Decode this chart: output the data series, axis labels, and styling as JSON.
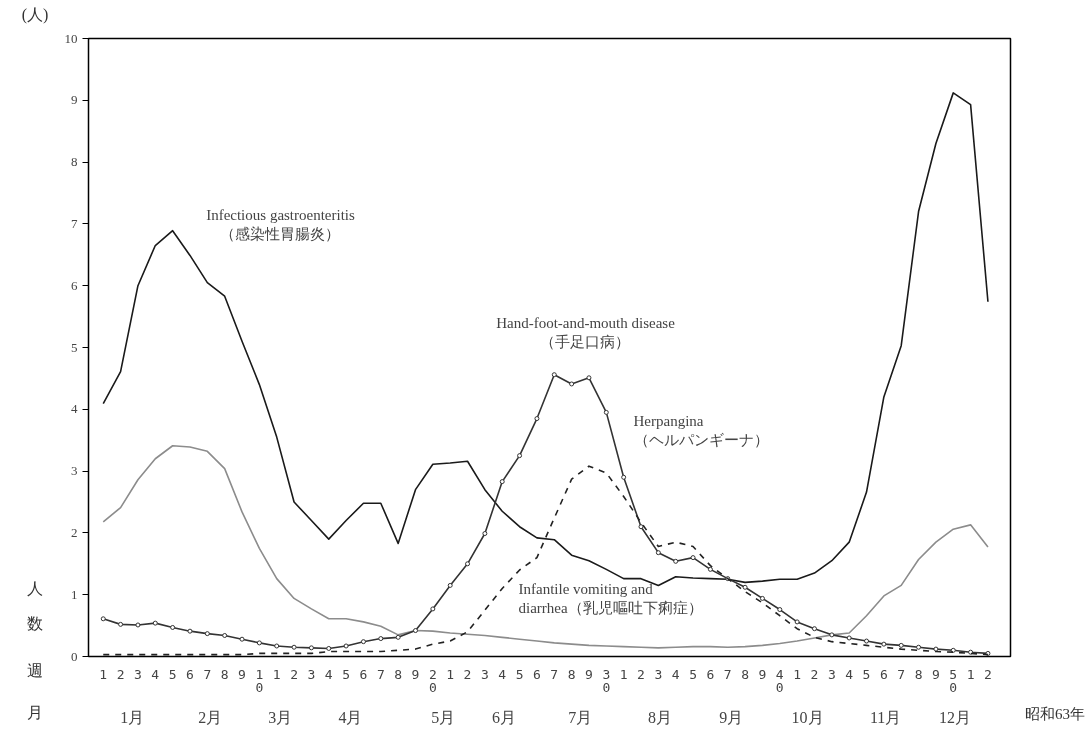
{
  "chart_data": {
    "type": "line",
    "categories": [
      "1",
      "2",
      "3",
      "4",
      "5",
      "6",
      "7",
      "8",
      "9",
      "1\n0",
      "1",
      "2",
      "3",
      "4",
      "5",
      "6",
      "7",
      "8",
      "9",
      "2\n0",
      "1",
      "2",
      "3",
      "4",
      "5",
      "6",
      "7",
      "8",
      "9",
      "3\n0",
      "1",
      "2",
      "3",
      "4",
      "5",
      "6",
      "7",
      "8",
      "9",
      "4\n0",
      "1",
      "2",
      "3",
      "4",
      "5",
      "6",
      "7",
      "8",
      "9",
      "5\n0",
      "1",
      "2"
    ],
    "series": [
      {
        "color": "#1a1a1a",
        "line_style": "solid",
        "marker": "none",
        "values": [
          4.09,
          4.61,
          6.0,
          6.65,
          6.89,
          6.49,
          6.05,
          5.83,
          5.1,
          4.4,
          3.55,
          2.5,
          2.2,
          1.9,
          2.2,
          2.48,
          2.48,
          1.83,
          2.7,
          3.11,
          3.13,
          3.16,
          2.7,
          2.35,
          2.1,
          1.92,
          1.89,
          1.64,
          1.55,
          1.41,
          1.26,
          1.26,
          1.15,
          1.29,
          1.27,
          1.26,
          1.25,
          1.2,
          1.22,
          1.25,
          1.25,
          1.35,
          1.55,
          1.85,
          2.66,
          4.2,
          5.03,
          7.2,
          8.3,
          9.12,
          8.93,
          5.74
        ]
      },
      {
        "color": "#8c8c8c",
        "line_style": "solid",
        "marker": "none",
        "values": [
          2.18,
          2.41,
          2.86,
          3.2,
          3.41,
          3.39,
          3.32,
          3.04,
          2.34,
          1.75,
          1.26,
          0.94,
          0.77,
          0.61,
          0.61,
          0.56,
          0.49,
          0.35,
          0.42,
          0.41,
          0.38,
          0.36,
          0.34,
          0.31,
          0.28,
          0.25,
          0.22,
          0.2,
          0.18,
          0.17,
          0.16,
          0.15,
          0.14,
          0.15,
          0.16,
          0.16,
          0.15,
          0.16,
          0.18,
          0.21,
          0.25,
          0.3,
          0.35,
          0.38,
          0.66,
          0.98,
          1.15,
          1.57,
          1.85,
          2.06,
          2.13,
          1.77
        ]
      },
      {
        "color": "#333333",
        "line_style": "solid",
        "marker": "circle",
        "values": [
          0.61,
          0.52,
          0.51,
          0.54,
          0.47,
          0.41,
          0.37,
          0.34,
          0.28,
          0.22,
          0.17,
          0.15,
          0.14,
          0.13,
          0.17,
          0.24,
          0.29,
          0.31,
          0.42,
          0.77,
          1.15,
          1.5,
          1.99,
          2.83,
          3.25,
          3.85,
          4.56,
          4.41,
          4.51,
          3.95,
          2.9,
          2.1,
          1.68,
          1.54,
          1.6,
          1.41,
          1.26,
          1.12,
          0.94,
          0.76,
          0.56,
          0.45,
          0.35,
          0.3,
          0.25,
          0.2,
          0.18,
          0.15,
          0.12,
          0.1,
          0.07,
          0.05
        ]
      },
      {
        "color": "#222222",
        "line_style": "dashed",
        "marker": "none",
        "values": [
          0.03,
          0.03,
          0.03,
          0.03,
          0.03,
          0.03,
          0.03,
          0.03,
          0.03,
          0.05,
          0.05,
          0.05,
          0.05,
          0.08,
          0.08,
          0.08,
          0.08,
          0.1,
          0.12,
          0.2,
          0.25,
          0.4,
          0.75,
          1.1,
          1.4,
          1.6,
          2.24,
          2.87,
          3.08,
          2.97,
          2.59,
          2.17,
          1.78,
          1.85,
          1.78,
          1.47,
          1.26,
          1.05,
          0.87,
          0.66,
          0.45,
          0.31,
          0.24,
          0.21,
          0.18,
          0.15,
          0.12,
          0.1,
          0.08,
          0.07,
          0.05,
          0.03
        ]
      }
    ],
    "ylabel": "人数",
    "ylim": [
      0,
      10
    ],
    "yticks": [
      0,
      1,
      2,
      3,
      4,
      5,
      6,
      7,
      8,
      9,
      10
    ],
    "grid": false,
    "annotations": [
      "Infectious gastroenteritis\n（感染性胃腸炎）",
      "Hand-foot-and-mouth disease\n（手足口病）",
      "Herpangina\n（ヘルパンギーナ）",
      "Infantile vomiting and\ndiarrhea（乳児嘔吐下痢症）",
      "(人)",
      "週",
      "月",
      "1月",
      "2月",
      "3月",
      "4月",
      "5月",
      "6月",
      "7月",
      "8月",
      "9月",
      "10月",
      "11月",
      "12月",
      "昭和63年"
    ]
  }
}
